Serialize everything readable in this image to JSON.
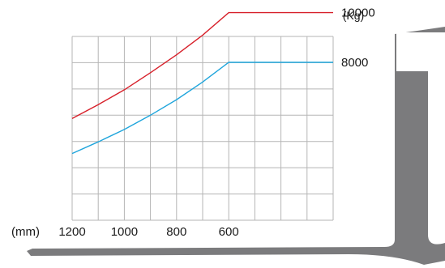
{
  "chart_data": {
    "type": "line",
    "title": "",
    "xlabel": "(mm)",
    "ylabel": "(Kg)",
    "x_reversed": true,
    "x_ticks": [
      1200,
      1000,
      800,
      600
    ],
    "y_ticks": [
      10000,
      8000
    ],
    "xlim": [
      1200,
      200
    ],
    "grid": true,
    "series": [
      {
        "color": "#d7202a",
        "x": [
          1200,
          1100,
          1000,
          900,
          800,
          700,
          600,
          500,
          400,
          300,
          200
        ],
        "y": [
          6830,
          7370,
          7940,
          8600,
          9290,
          10050,
          10920,
          10920,
          10920,
          10920,
          10920
        ]
      },
      {
        "color": "#1fa5dc",
        "x": [
          1200,
          1100,
          1000,
          900,
          800,
          700,
          600,
          500,
          400,
          300,
          200
        ],
        "y": [
          5480,
          5930,
          6410,
          6960,
          7560,
          8240,
          9000,
          9000,
          9000,
          9000,
          9000
        ]
      }
    ],
    "series_end_labels": [
      "10000",
      "8000"
    ]
  },
  "fork_color": "#7b7b7d"
}
